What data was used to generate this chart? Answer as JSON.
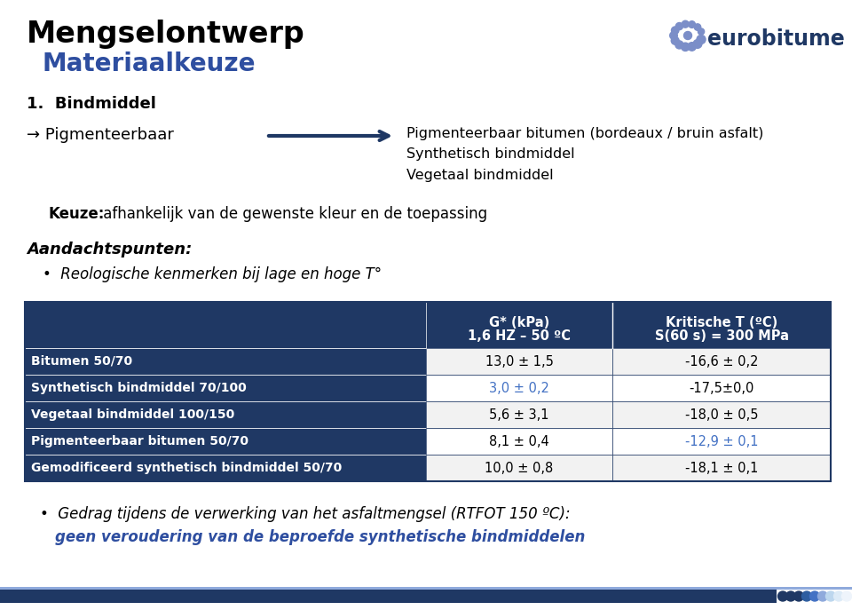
{
  "title1": "Mengselontwerp",
  "title2": "Materiaalkeuze",
  "section1": "1.  Bindmiddel",
  "arrow_text": "Pigmenteerbaar bitumen (bordeaux / bruin asfalt)\nSynthetisch bindmiddel\nVegetaal bindmiddel",
  "keuze_bold": "Keuze:",
  "keuze_rest": " afhankelijk van de gewenste kleur en de toepassing",
  "aandacht_title": "Aandachtspunten:",
  "aandacht_bullet": "Reologische kenmerken bij lage en hoge T°",
  "table_header_col2a": "G* (kPa)",
  "table_header_col2b": "1,6 HZ – 50 ºC",
  "table_header_col3a": "Kritische T (ºC)",
  "table_header_col3b": "S(60 s) = 300 MPa",
  "table_rows": [
    {
      "label": "Bitumen 50/70",
      "col2": "13,0 ± 1,5",
      "col3": "-16,6 ± 0,2",
      "col2_color": "#000000",
      "col3_color": "#000000"
    },
    {
      "label": "Synthetisch bindmiddel 70/100",
      "col2": "3,0 ± 0,2",
      "col3": "-17,5±0,0",
      "col2_color": "#4472C4",
      "col3_color": "#000000"
    },
    {
      "label": "Vegetaal bindmiddel 100/150",
      "col2": "5,6 ± 3,1",
      "col3": "-18,0 ± 0,5",
      "col2_color": "#000000",
      "col3_color": "#000000"
    },
    {
      "label": "Pigmenteerbaar bitumen 50/70",
      "col2": "8,1 ± 0,4",
      "col3": "-12,9 ± 0,1",
      "col2_color": "#000000",
      "col3_color": "#4472C4"
    },
    {
      "label": "Gemodificeerd synthetisch bindmiddel 50/70",
      "col2": "10,0 ± 0,8",
      "col3": "-18,1 ± 0,1",
      "col2_color": "#000000",
      "col3_color": "#000000"
    }
  ],
  "footer_bullet": "Gedrag tijdens de verwerking van het asfaltmengsel (RTFOT 150 ºC):",
  "footer_blue": "geen veroudering van de beproefde synthetische bindmiddelen",
  "header_bg": "#1F3864",
  "row_label_bg": "#1F3864",
  "row_label_color": "#FFFFFF",
  "table_border": "#1F3864",
  "title1_color": "#000000",
  "title2_color": "#2E4EA0",
  "section_color": "#000000",
  "footer_blue_color": "#2E4EA0",
  "blue_bar_color": "#1F3864",
  "bg_color": "#FFFFFF",
  "arrow_line_color": "#1F3864",
  "logo_dot_color": "#7B8EC8",
  "logo_text_color": "#1F3864"
}
